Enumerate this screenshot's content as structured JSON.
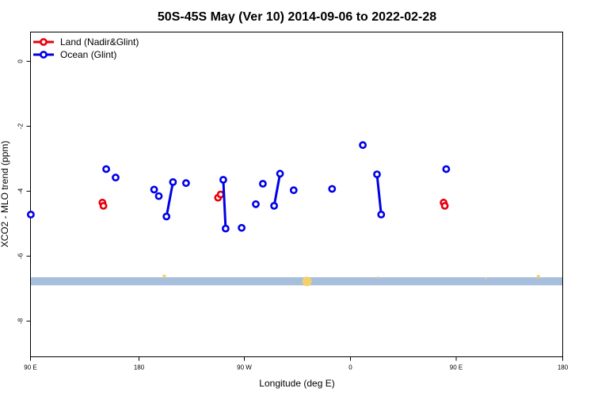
{
  "chart_data": {
    "type": "scatter",
    "title": "50S-45S May (Ver 10)   2014-09-06 to 2022-02-28",
    "xlabel": "Longitude (deg E)",
    "ylabel": "XCO2 - MLO trend (ppm)",
    "xlim": [
      90,
      450
    ],
    "ylim": [
      -9.1,
      0.9
    ],
    "x_ticks": [
      {
        "value": 90,
        "label": "90 E"
      },
      {
        "value": 180,
        "label": "180"
      },
      {
        "value": 270,
        "label": "90 W"
      },
      {
        "value": 360,
        "label": "0"
      },
      {
        "value": 450,
        "label": "90 E"
      },
      {
        "value": 540,
        "label": "180"
      }
    ],
    "y_ticks": [
      {
        "value": 0,
        "label": "0"
      },
      {
        "value": -2,
        "label": "-2"
      },
      {
        "value": -4,
        "label": "-4"
      },
      {
        "value": -6,
        "label": "-6"
      },
      {
        "value": -8,
        "label": "-8"
      }
    ],
    "legend_position": "top-left",
    "grid": false,
    "band": {
      "from": -6.65,
      "to": -6.9,
      "color": "#a7bfdc"
    },
    "band_markers_color": "#f5cf6b",
    "series": [
      {
        "name": "Land (Nadir&Glint)",
        "color": "#e8000b",
        "segments": [
          [
            [
              150.8,
              -4.35
            ],
            [
              151.7,
              -4.45
            ]
          ],
          [
            [
              248.6,
              -4.2
            ],
            [
              250.8,
              -4.1
            ]
          ],
          [
            [
              439.3,
              -4.35
            ],
            [
              440.3,
              -4.45
            ]
          ]
        ]
      },
      {
        "name": "Ocean (Glint)",
        "color": "#0000e8",
        "segments": [
          [
            [
              90.3,
              -4.72
            ]
          ],
          [
            [
              154,
              -3.32
            ]
          ],
          [
            [
              162,
              -3.58
            ]
          ],
          [
            [
              194.5,
              -3.95
            ]
          ],
          [
            [
              198.5,
              -4.15
            ]
          ],
          [
            [
              205,
              -4.78
            ],
            [
              210.5,
              -3.72
            ]
          ],
          [
            [
              221.5,
              -3.75
            ]
          ],
          [
            [
              253,
              -3.65
            ],
            [
              255,
              -5.15
            ]
          ],
          [
            [
              268.5,
              -5.13
            ]
          ],
          [
            [
              280.5,
              -4.4
            ]
          ],
          [
            [
              286.5,
              -3.77
            ]
          ],
          [
            [
              296,
              -4.45
            ],
            [
              301,
              -3.46
            ]
          ],
          [
            [
              312.5,
              -3.97
            ]
          ],
          [
            [
              345,
              -3.93
            ]
          ],
          [
            [
              371,
              -2.58
            ]
          ],
          [
            [
              383,
              -3.48
            ],
            [
              386.5,
              -4.72
            ]
          ],
          [
            [
              441.5,
              -3.32
            ]
          ]
        ]
      }
    ]
  }
}
